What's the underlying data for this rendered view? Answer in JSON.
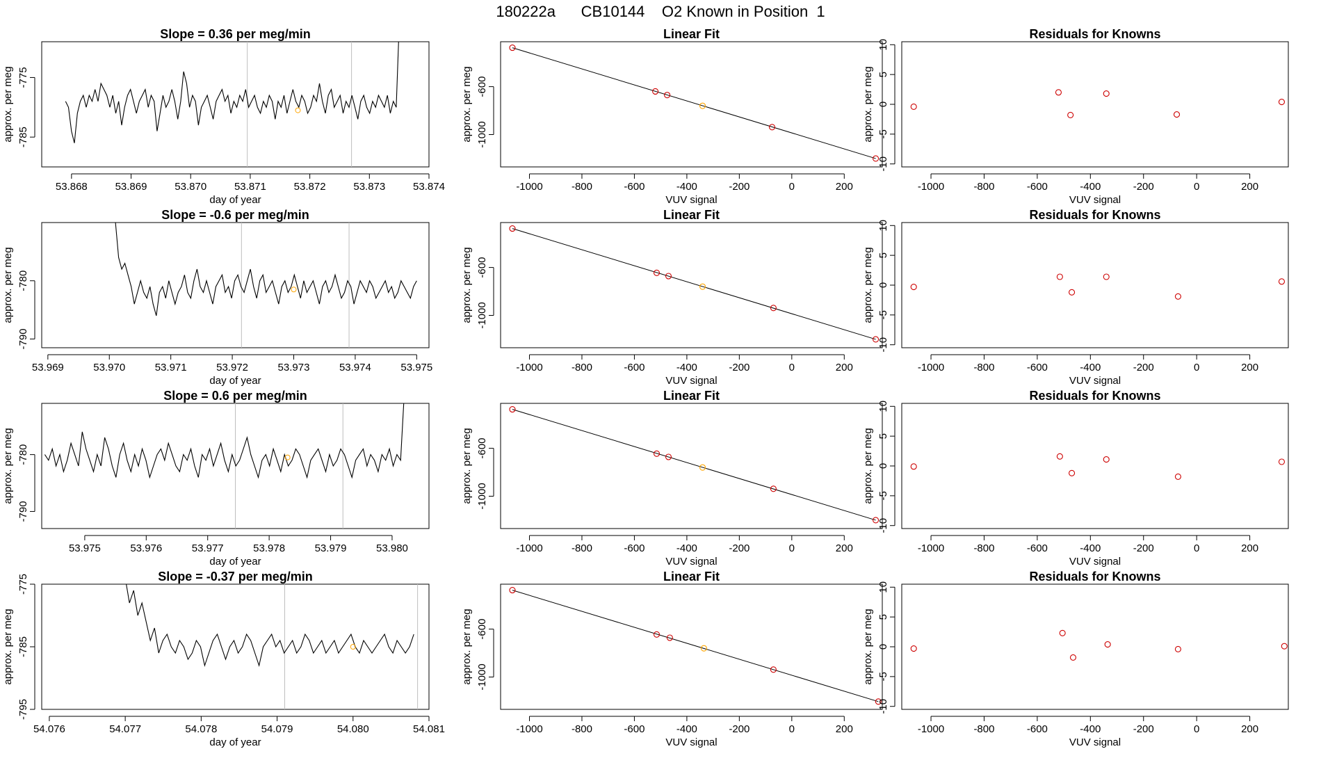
{
  "page_title": "180222a      CB10144    O2 Known in Position  1",
  "colors": {
    "series": "#000000",
    "guide": "#bebebe",
    "known_point": "#ffa500",
    "fit_point": "#cd0000",
    "residual_point": "#cd0000",
    "axis": "#000000"
  },
  "chart_data": [
    {
      "id": "row1-trace",
      "type": "line",
      "title": "Slope =  0.36  per meg/min",
      "xlabel": "day of year",
      "ylabel": "approx. per meg",
      "xlim": [
        53.8675,
        53.874
      ],
      "ylim": [
        -790,
        -769
      ],
      "x_ticks": [
        "53.868",
        "53.869",
        "53.870",
        "53.871",
        "53.872",
        "53.873",
        "53.874"
      ],
      "y_ticks": [
        "-775",
        "-785"
      ],
      "series": [
        {
          "name": "signal",
          "x_start": 53.8679,
          "x_end": 53.8735,
          "values": [
            -779,
            -780,
            -784,
            -786,
            -781,
            -779,
            -778,
            -780,
            -778,
            -779,
            -777,
            -779,
            -776,
            -777,
            -778,
            -780,
            -778,
            -781,
            -779,
            -783,
            -780,
            -778,
            -777,
            -779,
            -781,
            -779,
            -778,
            -777,
            -780,
            -778,
            -779,
            -784,
            -781,
            -778,
            -780,
            -779,
            -777,
            -779,
            -782,
            -779,
            -774,
            -776,
            -780,
            -778,
            -779,
            -783,
            -780,
            -779,
            -778,
            -780,
            -782,
            -779,
            -778,
            -777,
            -779,
            -778,
            -781,
            -779,
            -780,
            -778,
            -779,
            -777,
            -780,
            -779,
            -778,
            -780,
            -781,
            -779,
            -780,
            -778,
            -779,
            -782,
            -779,
            -780,
            -778,
            -781,
            -779,
            -777,
            -779,
            -780,
            -778,
            -779,
            -781,
            -780,
            -778,
            -779,
            -776,
            -779,
            -781,
            -778,
            -777,
            -780,
            -779,
            -778,
            -781,
            -779,
            -780,
            -778,
            -780,
            -782,
            -779,
            -778,
            -780,
            -781,
            -779,
            -780,
            -778,
            -779,
            -780,
            -778,
            -781,
            -779,
            -780,
            -766
          ]
        }
      ],
      "vlines": [
        53.87095,
        53.8727
      ],
      "marker": {
        "x": 53.8718,
        "y": -780.5
      }
    },
    {
      "id": "row2-trace",
      "type": "line",
      "title": "Slope =  -0.6  per meg/min",
      "xlabel": "day of year",
      "ylabel": "approx. per meg",
      "xlim": [
        53.9689,
        53.9752
      ],
      "ylim": [
        -791.5,
        -770
      ],
      "x_ticks": [
        "53.969",
        "53.970",
        "53.971",
        "53.972",
        "53.973",
        "53.974",
        "53.975"
      ],
      "y_ticks": [
        "-780",
        "-790"
      ],
      "series": [
        {
          "name": "signal",
          "x_start": 53.9701,
          "x_end": 53.975,
          "values": [
            -770,
            -776,
            -778,
            -777,
            -779,
            -781,
            -784,
            -782,
            -780,
            -782,
            -783,
            -781,
            -784,
            -786,
            -782,
            -781,
            -783,
            -780,
            -782,
            -784,
            -782,
            -781,
            -779,
            -782,
            -783,
            -780,
            -778,
            -781,
            -782,
            -780,
            -782,
            -784,
            -781,
            -780,
            -779,
            -782,
            -781,
            -783,
            -780,
            -779,
            -781,
            -782,
            -780,
            -778,
            -781,
            -783,
            -780,
            -779,
            -782,
            -781,
            -780,
            -782,
            -784,
            -781,
            -780,
            -782,
            -781,
            -779,
            -781,
            -783,
            -780,
            -782,
            -781,
            -780,
            -782,
            -784,
            -781,
            -780,
            -782,
            -781,
            -779,
            -781,
            -783,
            -782,
            -780,
            -781,
            -784,
            -782,
            -780,
            -781,
            -782,
            -780,
            -781,
            -783,
            -782,
            -781,
            -780,
            -782,
            -781,
            -783,
            -782,
            -780,
            -781,
            -782,
            -783,
            -781,
            -780
          ]
        }
      ],
      "vlines": [
        53.97215,
        53.9739
      ],
      "marker": {
        "x": 53.973,
        "y": -781.5
      }
    },
    {
      "id": "row3-trace",
      "type": "line",
      "title": "Slope =  0.6  per meg/min",
      "xlabel": "day of year",
      "ylabel": "approx. per meg",
      "xlim": [
        53.9743,
        53.9806
      ],
      "ylim": [
        -793,
        -771
      ],
      "x_ticks": [
        "53.975",
        "53.976",
        "53.977",
        "53.978",
        "53.979",
        "53.980"
      ],
      "y_ticks": [
        "-780",
        "-790"
      ],
      "series": [
        {
          "name": "signal",
          "x_start": 53.97435,
          "x_end": 53.9802,
          "values": [
            -780,
            -781,
            -779,
            -782,
            -780,
            -783,
            -781,
            -778,
            -780,
            -782,
            -776,
            -779,
            -781,
            -783,
            -780,
            -782,
            -777,
            -779,
            -782,
            -784,
            -780,
            -778,
            -781,
            -783,
            -780,
            -782,
            -779,
            -781,
            -784,
            -782,
            -780,
            -779,
            -781,
            -778,
            -780,
            -782,
            -783,
            -780,
            -781,
            -779,
            -782,
            -784,
            -780,
            -781,
            -779,
            -782,
            -780,
            -778,
            -781,
            -783,
            -780,
            -782,
            -781,
            -779,
            -777,
            -780,
            -782,
            -784,
            -781,
            -780,
            -782,
            -779,
            -781,
            -783,
            -780,
            -782,
            -781,
            -779,
            -780,
            -782,
            -784,
            -781,
            -780,
            -779,
            -781,
            -783,
            -780,
            -782,
            -781,
            -779,
            -780,
            -782,
            -784,
            -781,
            -780,
            -779,
            -782,
            -780,
            -781,
            -783,
            -780,
            -781,
            -779,
            -782,
            -780,
            -781,
            -769
          ]
        }
      ],
      "vlines": [
        53.97745,
        53.9792
      ],
      "marker": {
        "x": 53.9783,
        "y": -780.5
      }
    },
    {
      "id": "row4-trace",
      "type": "line",
      "title": "Slope =  -0.37  per meg/min",
      "xlabel": "day of year",
      "ylabel": "approx. per meg",
      "xlim": [
        54.0759,
        54.081
      ],
      "ylim": [
        -795,
        -775
      ],
      "x_ticks": [
        "54.076",
        "54.077",
        "54.078",
        "54.079",
        "54.080",
        "54.081"
      ],
      "y_ticks": [
        "-775",
        "-785",
        "-795"
      ],
      "series": [
        {
          "name": "signal",
          "x_start": 54.077,
          "x_end": 54.0808,
          "values": [
            -774,
            -778,
            -776,
            -780,
            -778,
            -781,
            -784,
            -782,
            -786,
            -784,
            -783,
            -785,
            -786,
            -784,
            -785,
            -787,
            -786,
            -784,
            -785,
            -788,
            -786,
            -784,
            -783,
            -785,
            -787,
            -785,
            -784,
            -786,
            -785,
            -783,
            -784,
            -786,
            -788,
            -785,
            -784,
            -783,
            -785,
            -784,
            -786,
            -785,
            -784,
            -786,
            -785,
            -783,
            -784,
            -786,
            -785,
            -784,
            -786,
            -785,
            -784,
            -786,
            -785,
            -784,
            -783,
            -785,
            -786,
            -784,
            -785,
            -786,
            -785,
            -784,
            -783,
            -785,
            -786,
            -784,
            -785,
            -786,
            -785,
            -783
          ]
        }
      ],
      "vlines": [
        54.0791,
        54.08085
      ],
      "marker": {
        "x": 54.08,
        "y": -785
      }
    },
    {
      "id": "row1-fit",
      "type": "scatter",
      "title": "Linear Fit",
      "xlabel": "VUV signal",
      "ylabel": "approx. per meg",
      "xlim": [
        -1110,
        345
      ],
      "ylim": [
        -1270,
        -225
      ],
      "x_ticks": [
        "-1000",
        "-800",
        "-600",
        "-400",
        "-200",
        "0",
        "200"
      ],
      "y_ticks": [
        "-600",
        "-1000"
      ],
      "line": [
        [
          -1065,
          -275
        ],
        [
          320,
          -1200
        ]
      ],
      "points": [
        [
          -1065,
          -275
        ],
        [
          -520,
          -640
        ],
        [
          -475,
          -670
        ],
        [
          -340,
          -760
        ],
        [
          -75,
          -938
        ],
        [
          320,
          -1200
        ]
      ],
      "known_index": 3
    },
    {
      "id": "row2-fit",
      "type": "scatter",
      "title": "Linear Fit",
      "xlabel": "VUV signal",
      "ylabel": "approx. per meg",
      "xlim": [
        -1110,
        345
      ],
      "ylim": [
        -1270,
        -225
      ],
      "x_ticks": [
        "-1000",
        "-800",
        "-600",
        "-400",
        "-200",
        "0",
        "200"
      ],
      "y_ticks": [
        "-600",
        "-1000"
      ],
      "line": [
        [
          -1065,
          -275
        ],
        [
          320,
          -1200
        ]
      ],
      "points": [
        [
          -1065,
          -275
        ],
        [
          -515,
          -645
        ],
        [
          -470,
          -672
        ],
        [
          -340,
          -760
        ],
        [
          -70,
          -938
        ],
        [
          320,
          -1200
        ]
      ],
      "known_index": 3
    },
    {
      "id": "row3-fit",
      "type": "scatter",
      "title": "Linear Fit",
      "xlabel": "VUV signal",
      "ylabel": "approx. per meg",
      "xlim": [
        -1110,
        345
      ],
      "ylim": [
        -1270,
        -225
      ],
      "x_ticks": [
        "-1000",
        "-800",
        "-600",
        "-400",
        "-200",
        "0",
        "200"
      ],
      "y_ticks": [
        "-600",
        "-1000"
      ],
      "line": [
        [
          -1065,
          -275
        ],
        [
          320,
          -1200
        ]
      ],
      "points": [
        [
          -1065,
          -275
        ],
        [
          -515,
          -645
        ],
        [
          -470,
          -672
        ],
        [
          -340,
          -760
        ],
        [
          -70,
          -938
        ],
        [
          320,
          -1200
        ]
      ],
      "known_index": 3
    },
    {
      "id": "row4-fit",
      "type": "scatter",
      "title": "Linear Fit",
      "xlabel": "VUV signal",
      "ylabel": "approx. per meg",
      "xlim": [
        -1110,
        345
      ],
      "ylim": [
        -1270,
        -225
      ],
      "x_ticks": [
        "-1000",
        "-800",
        "-600",
        "-400",
        "-200",
        "0",
        "200"
      ],
      "y_ticks": [
        "-600",
        "-1000"
      ],
      "line": [
        [
          -1065,
          -275
        ],
        [
          330,
          -1205
        ]
      ],
      "points": [
        [
          -1065,
          -275
        ],
        [
          -515,
          -645
        ],
        [
          -465,
          -672
        ],
        [
          -335,
          -760
        ],
        [
          -70,
          -938
        ],
        [
          330,
          -1205
        ]
      ],
      "known_index": 3
    },
    {
      "id": "row1-resid",
      "type": "scatter",
      "title": "Residuals for Knowns",
      "xlabel": "VUV signal",
      "ylabel": "approx. per meg",
      "xlim": [
        -1110,
        345
      ],
      "ylim": [
        -10.5,
        10.5
      ],
      "x_ticks": [
        "-1000",
        "-800",
        "-600",
        "-400",
        "-200",
        "0",
        "200"
      ],
      "y_ticks": [
        "10",
        "5",
        "0",
        "-5",
        "-10"
      ],
      "points": [
        [
          -1065,
          -0.4
        ],
        [
          -520,
          2.0
        ],
        [
          -475,
          -1.8
        ],
        [
          -340,
          1.8
        ],
        [
          -75,
          -1.7
        ],
        [
          320,
          0.4
        ]
      ]
    },
    {
      "id": "row2-resid",
      "type": "scatter",
      "title": "Residuals for Knowns",
      "xlabel": "VUV signal",
      "ylabel": "approx. per meg",
      "xlim": [
        -1110,
        345
      ],
      "ylim": [
        -10.5,
        10.5
      ],
      "x_ticks": [
        "-1000",
        "-800",
        "-600",
        "-400",
        "-200",
        "0",
        "200"
      ],
      "y_ticks": [
        "10",
        "5",
        "0",
        "-5",
        "-10"
      ],
      "points": [
        [
          -1065,
          -0.3
        ],
        [
          -515,
          1.4
        ],
        [
          -470,
          -1.2
        ],
        [
          -340,
          1.4
        ],
        [
          -70,
          -1.9
        ],
        [
          320,
          0.6
        ]
      ]
    },
    {
      "id": "row3-resid",
      "type": "scatter",
      "title": "Residuals for Knowns",
      "xlabel": "VUV signal",
      "ylabel": "approx. per meg",
      "xlim": [
        -1110,
        345
      ],
      "ylim": [
        -10.5,
        10.5
      ],
      "x_ticks": [
        "-1000",
        "-800",
        "-600",
        "-400",
        "-200",
        "0",
        "200"
      ],
      "y_ticks": [
        "10",
        "5",
        "0",
        "-5",
        "-10"
      ],
      "points": [
        [
          -1065,
          -0.1
        ],
        [
          -515,
          1.6
        ],
        [
          -470,
          -1.2
        ],
        [
          -340,
          1.1
        ],
        [
          -70,
          -1.8
        ],
        [
          320,
          0.7
        ]
      ]
    },
    {
      "id": "row4-resid",
      "type": "scatter",
      "title": "Residuals for Knowns",
      "xlabel": "VUV signal",
      "ylabel": "approx. per meg",
      "xlim": [
        -1110,
        345
      ],
      "ylim": [
        -10.5,
        10.5
      ],
      "x_ticks": [
        "-1000",
        "-800",
        "-600",
        "-400",
        "-200",
        "0",
        "200"
      ],
      "y_ticks": [
        "10",
        "5",
        "0",
        "-5",
        "-10"
      ],
      "points": [
        [
          -1065,
          -0.3
        ],
        [
          -505,
          2.3
        ],
        [
          -465,
          -1.8
        ],
        [
          -335,
          0.4
        ],
        [
          -70,
          -0.4
        ],
        [
          330,
          0.1
        ]
      ]
    }
  ]
}
